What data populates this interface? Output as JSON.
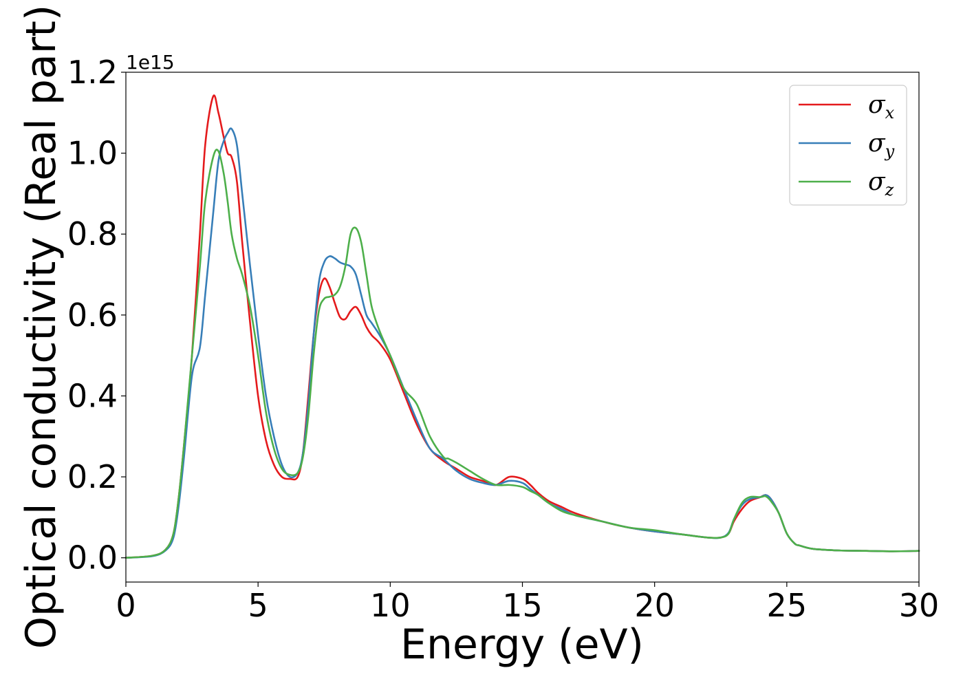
{
  "chart_data": {
    "type": "line",
    "xlabel": "Energy (eV)",
    "ylabel": "Optical conductivity (Real part)",
    "y_offset_text": "1e15",
    "xlim": [
      0,
      30
    ],
    "ylim": [
      -0.06,
      1.2
    ],
    "x_ticks": [
      0,
      5,
      10,
      15,
      20,
      25,
      30
    ],
    "y_ticks": [
      0.0,
      0.2,
      0.4,
      0.6,
      0.8,
      1.0,
      1.2
    ],
    "y_tick_labels": [
      "0.0",
      "0.2",
      "0.4",
      "0.6",
      "0.8",
      "1.0",
      "1.2"
    ],
    "legend_position": "top-right",
    "grid": false,
    "series": [
      {
        "name": "σx",
        "legend_symbol": "σ",
        "legend_subscript": "x",
        "color": "#e41a1c",
        "x": [
          0,
          1.0,
          1.5,
          1.8,
          2.0,
          2.2,
          2.5,
          2.8,
          3.0,
          3.3,
          3.5,
          3.7,
          3.85,
          4.0,
          4.2,
          4.4,
          4.7,
          5.0,
          5.3,
          5.6,
          5.9,
          6.2,
          6.5,
          6.7,
          6.9,
          7.1,
          7.3,
          7.5,
          7.7,
          7.9,
          8.1,
          8.3,
          8.5,
          8.7,
          8.9,
          9.1,
          9.3,
          9.6,
          10.0,
          10.5,
          11.0,
          11.5,
          12.0,
          12.5,
          13.0,
          13.5,
          14.0,
          14.5,
          15.0,
          15.3,
          15.6,
          16.0,
          16.5,
          17.0,
          18.0,
          19.0,
          20.0,
          21.0,
          22.0,
          22.5,
          22.8,
          23.0,
          23.3,
          23.6,
          24.0,
          24.2,
          24.4,
          24.7,
          25.0,
          25.3,
          25.5,
          26.0,
          27.0,
          28.0,
          29.0,
          30.0
        ],
        "y": [
          0.0,
          0.005,
          0.02,
          0.06,
          0.15,
          0.28,
          0.5,
          0.8,
          1.02,
          1.14,
          1.1,
          1.04,
          1.0,
          0.99,
          0.93,
          0.78,
          0.58,
          0.4,
          0.29,
          0.23,
          0.2,
          0.195,
          0.2,
          0.26,
          0.4,
          0.55,
          0.65,
          0.69,
          0.67,
          0.63,
          0.595,
          0.59,
          0.61,
          0.62,
          0.6,
          0.57,
          0.55,
          0.53,
          0.49,
          0.41,
          0.33,
          0.27,
          0.24,
          0.22,
          0.2,
          0.19,
          0.18,
          0.2,
          0.195,
          0.18,
          0.16,
          0.14,
          0.125,
          0.11,
          0.09,
          0.075,
          0.065,
          0.058,
          0.05,
          0.05,
          0.06,
          0.09,
          0.12,
          0.14,
          0.15,
          0.155,
          0.145,
          0.11,
          0.06,
          0.035,
          0.03,
          0.022,
          0.018,
          0.017,
          0.016,
          0.017
        ]
      },
      {
        "name": "σy",
        "legend_symbol": "σ",
        "legend_subscript": "y",
        "color": "#377eb8",
        "x": [
          0,
          1.0,
          1.5,
          1.8,
          2.0,
          2.2,
          2.5,
          2.8,
          3.0,
          3.3,
          3.5,
          3.7,
          3.85,
          4.0,
          4.2,
          4.4,
          4.7,
          5.0,
          5.3,
          5.6,
          5.9,
          6.2,
          6.5,
          6.7,
          6.9,
          7.1,
          7.3,
          7.5,
          7.7,
          7.9,
          8.1,
          8.3,
          8.5,
          8.7,
          8.9,
          9.1,
          9.3,
          9.6,
          10.0,
          10.5,
          11.0,
          11.5,
          12.0,
          12.5,
          13.0,
          13.5,
          14.0,
          14.5,
          15.0,
          15.3,
          15.6,
          16.0,
          16.5,
          17.0,
          18.0,
          19.0,
          20.0,
          21.0,
          22.0,
          22.5,
          22.8,
          23.0,
          23.3,
          23.6,
          24.0,
          24.2,
          24.4,
          24.7,
          25.0,
          25.3,
          25.5,
          26.0,
          27.0,
          28.0,
          29.0,
          30.0
        ],
        "y": [
          0.0,
          0.004,
          0.018,
          0.05,
          0.13,
          0.25,
          0.45,
          0.52,
          0.65,
          0.85,
          0.98,
          1.03,
          1.05,
          1.06,
          1.02,
          0.9,
          0.72,
          0.55,
          0.4,
          0.3,
          0.23,
          0.2,
          0.21,
          0.26,
          0.38,
          0.55,
          0.68,
          0.73,
          0.745,
          0.74,
          0.73,
          0.725,
          0.72,
          0.7,
          0.65,
          0.6,
          0.58,
          0.55,
          0.5,
          0.42,
          0.34,
          0.27,
          0.245,
          0.215,
          0.195,
          0.185,
          0.18,
          0.19,
          0.185,
          0.17,
          0.155,
          0.135,
          0.12,
          0.105,
          0.09,
          0.075,
          0.065,
          0.058,
          0.05,
          0.05,
          0.062,
          0.095,
          0.13,
          0.145,
          0.15,
          0.155,
          0.145,
          0.11,
          0.06,
          0.035,
          0.03,
          0.022,
          0.018,
          0.017,
          0.016,
          0.017
        ]
      },
      {
        "name": "σz",
        "legend_symbol": "σ",
        "legend_subscript": "z",
        "color": "#4daf4a",
        "x": [
          0,
          1.0,
          1.5,
          1.8,
          2.0,
          2.2,
          2.5,
          2.8,
          3.0,
          3.3,
          3.5,
          3.7,
          3.85,
          4.0,
          4.2,
          4.4,
          4.7,
          5.0,
          5.3,
          5.6,
          5.9,
          6.2,
          6.5,
          6.7,
          6.9,
          7.1,
          7.3,
          7.5,
          7.7,
          7.9,
          8.1,
          8.3,
          8.5,
          8.7,
          8.9,
          9.1,
          9.3,
          9.6,
          10.0,
          10.5,
          11.0,
          11.5,
          12.0,
          12.2,
          12.5,
          13.0,
          13.5,
          14.0,
          14.5,
          15.0,
          15.3,
          15.6,
          16.0,
          16.5,
          17.0,
          18.0,
          19.0,
          20.0,
          21.0,
          22.0,
          22.5,
          22.8,
          23.0,
          23.3,
          23.6,
          24.0,
          24.2,
          24.4,
          24.7,
          25.0,
          25.3,
          25.5,
          26.0,
          27.0,
          28.0,
          29.0,
          30.0
        ],
        "y": [
          0.0,
          0.005,
          0.02,
          0.06,
          0.15,
          0.28,
          0.5,
          0.72,
          0.88,
          0.99,
          1.005,
          0.95,
          0.88,
          0.8,
          0.74,
          0.7,
          0.62,
          0.5,
          0.36,
          0.27,
          0.22,
          0.205,
          0.21,
          0.25,
          0.35,
          0.5,
          0.61,
          0.64,
          0.645,
          0.65,
          0.67,
          0.72,
          0.8,
          0.815,
          0.78,
          0.7,
          0.62,
          0.56,
          0.5,
          0.42,
          0.38,
          0.3,
          0.25,
          0.245,
          0.235,
          0.215,
          0.195,
          0.18,
          0.18,
          0.175,
          0.165,
          0.155,
          0.135,
          0.115,
          0.105,
          0.09,
          0.075,
          0.068,
          0.058,
          0.05,
          0.05,
          0.06,
          0.095,
          0.135,
          0.15,
          0.15,
          0.152,
          0.14,
          0.11,
          0.06,
          0.035,
          0.03,
          0.022,
          0.018,
          0.017,
          0.016,
          0.017
        ]
      }
    ]
  }
}
